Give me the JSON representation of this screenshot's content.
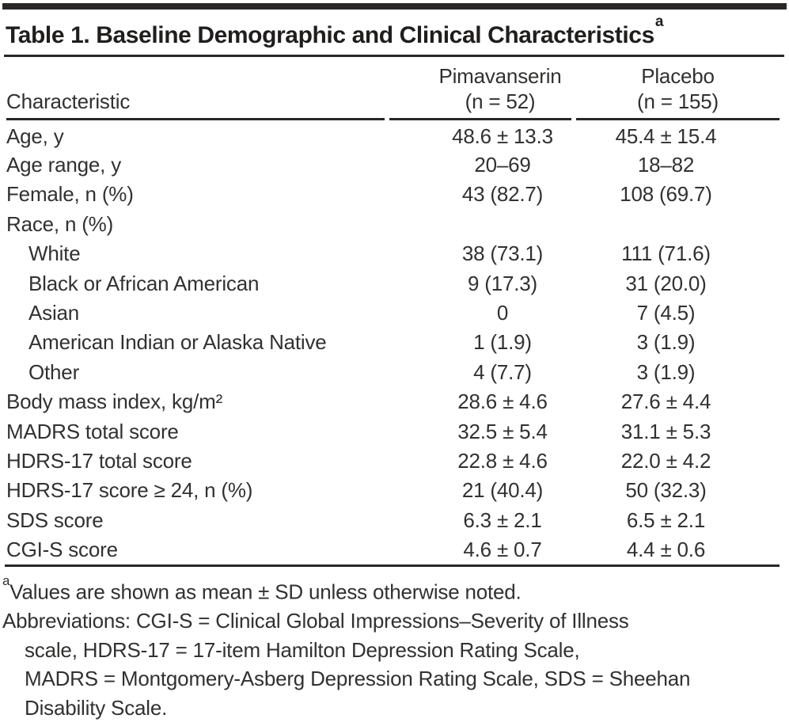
{
  "table": {
    "title": "Table 1. Baseline Demographic and Clinical Characteristics",
    "title_superscript": "a",
    "header": {
      "characteristic": "Characteristic",
      "pimavanserin_line1": "Pimavanserin",
      "pimavanserin_line2": "(n = 52)",
      "placebo_line1": "Placebo",
      "placebo_line2": "(n = 155)"
    },
    "rows": [
      {
        "label": "Age, y",
        "pimavanserin": "48.6 ± 13.3",
        "placebo": "45.4 ± 15.4"
      },
      {
        "label": "Age range, y",
        "pimavanserin": "20–69",
        "placebo": "18–82"
      },
      {
        "label": "Female, n (%)",
        "pimavanserin": "43 (82.7)",
        "placebo": "108 (69.7)"
      },
      {
        "label": "Race, n (%)",
        "pimavanserin": "",
        "placebo": ""
      },
      {
        "label": "White",
        "pimavanserin": "38 (73.1)",
        "placebo": "111 (71.6)"
      },
      {
        "label": "Black or African American",
        "pimavanserin": "9 (17.3)",
        "placebo": "31 (20.0)"
      },
      {
        "label": "Asian",
        "pimavanserin": "0",
        "placebo": "7 (4.5)"
      },
      {
        "label": "American Indian or Alaska Native",
        "pimavanserin": "1 (1.9)",
        "placebo": "3 (1.9)"
      },
      {
        "label": "Other",
        "pimavanserin": "4 (7.7)",
        "placebo": "3 (1.9)"
      },
      {
        "label": "Body mass index, kg/m²",
        "pimavanserin": "28.6 ± 4.6",
        "placebo": "27.6 ± 4.4"
      },
      {
        "label": "MADRS total score",
        "pimavanserin": "32.5 ± 5.4",
        "placebo": "31.1 ± 5.3"
      },
      {
        "label": "HDRS-17 total score",
        "pimavanserin": "22.8 ± 4.6",
        "placebo": "22.0 ± 4.2"
      },
      {
        "label": "HDRS-17 score ≥ 24, n (%)",
        "pimavanserin": "21 (40.4)",
        "placebo": "50 (32.3)"
      },
      {
        "label": "SDS score",
        "pimavanserin": "6.3 ± 2.1",
        "placebo": "6.5 ± 2.1"
      },
      {
        "label": "CGI-S score",
        "pimavanserin": "4.6 ± 0.7",
        "placebo": "4.4 ± 0.6"
      }
    ],
    "footnotes": {
      "note_a_marker": "a",
      "note_a_text": "Values are shown as mean ± SD unless otherwise noted.",
      "abbreviations_lines": [
        "Abbreviations: CGI-S = Clinical Global Impressions–Severity of Illness",
        "scale, HDRS-17 = 17-item Hamilton Depression Rating Scale,",
        "MADRS = Montgomery-Asberg Depression Rating Scale, SDS = Sheehan",
        "Disability Scale."
      ]
    }
  },
  "colors": {
    "text": "#323130",
    "heading": "#201e1d",
    "rule": "#2a2827",
    "background": "#ffffff"
  }
}
